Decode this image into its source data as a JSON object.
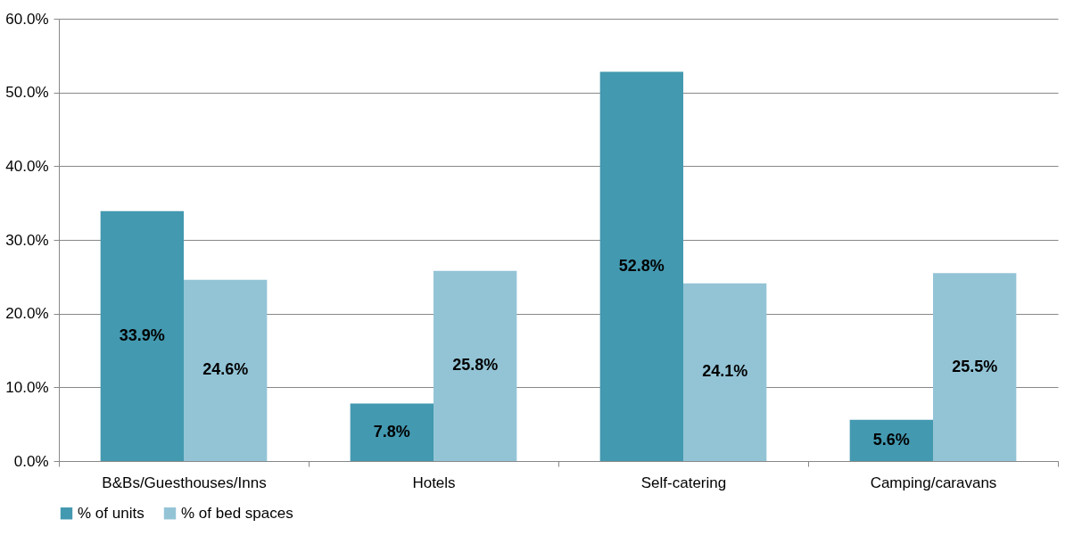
{
  "chart_data": {
    "type": "bar",
    "categories": [
      "B&Bs/Guesthouses/Inns",
      "Hotels",
      "Self-catering",
      "Camping/caravans"
    ],
    "series": [
      {
        "name": "% of units",
        "color": "#4399b0",
        "values": [
          33.9,
          7.8,
          52.8,
          5.6
        ],
        "value_labels": [
          "33.9%",
          "7.8%",
          "52.8%",
          "5.6%"
        ]
      },
      {
        "name": "% of bed spaces",
        "color": "#93c4d6",
        "values": [
          24.6,
          25.8,
          24.1,
          25.5
        ],
        "value_labels": [
          "24.6%",
          "25.8%",
          "24.1%",
          "25.5%"
        ]
      }
    ],
    "ylim": [
      0,
      60
    ],
    "yticks": [
      {
        "value": 0,
        "label": "0.0%"
      },
      {
        "value": 10,
        "label": "10.0%"
      },
      {
        "value": 20,
        "label": "20.0%"
      },
      {
        "value": 30,
        "label": "30.0%"
      },
      {
        "value": 40,
        "label": "40.0%"
      },
      {
        "value": 50,
        "label": "50.0%"
      },
      {
        "value": 60,
        "label": "60.0%"
      }
    ],
    "grid": "y",
    "legend": "bottom"
  }
}
